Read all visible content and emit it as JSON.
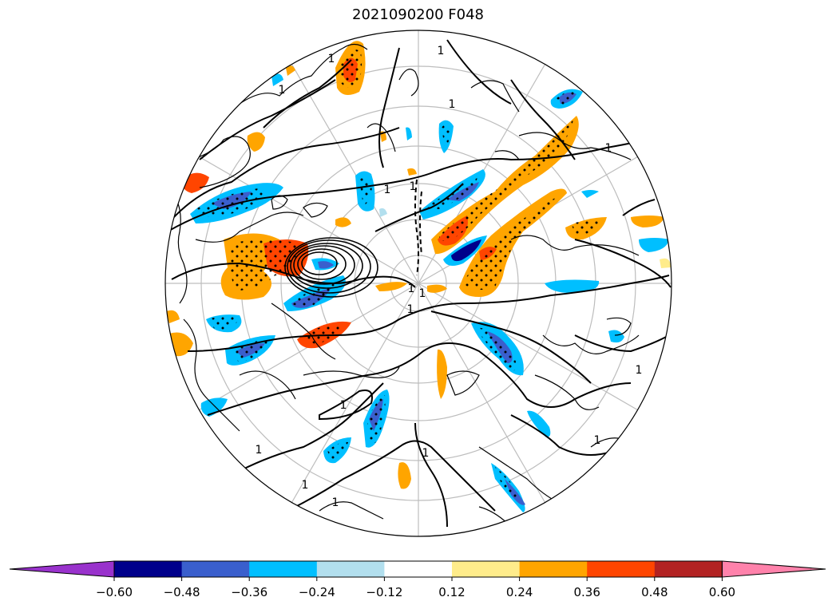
{
  "title": "2021090200 F048",
  "map": {
    "projection": "north-polar-stereographic",
    "contour_label": "1",
    "graticule_color": "#bdbdbd",
    "coastline_color": "#000000",
    "contour_color": "#000000",
    "stipple_color": "#000000"
  },
  "colorbar": {
    "extend": "both",
    "colors": [
      "#9932cc",
      "#00008b",
      "#3a5fcd",
      "#00bfff",
      "#b2dfee",
      "#ffffff",
      "#ffec8b",
      "#ffa500",
      "#ff4500",
      "#b22222",
      "#ff82ab"
    ],
    "tick_labels": [
      "−0.60",
      "−0.48",
      "−0.36",
      "−0.24",
      "−0.12",
      "0.12",
      "0.24",
      "0.36",
      "0.48",
      "0.60"
    ]
  }
}
